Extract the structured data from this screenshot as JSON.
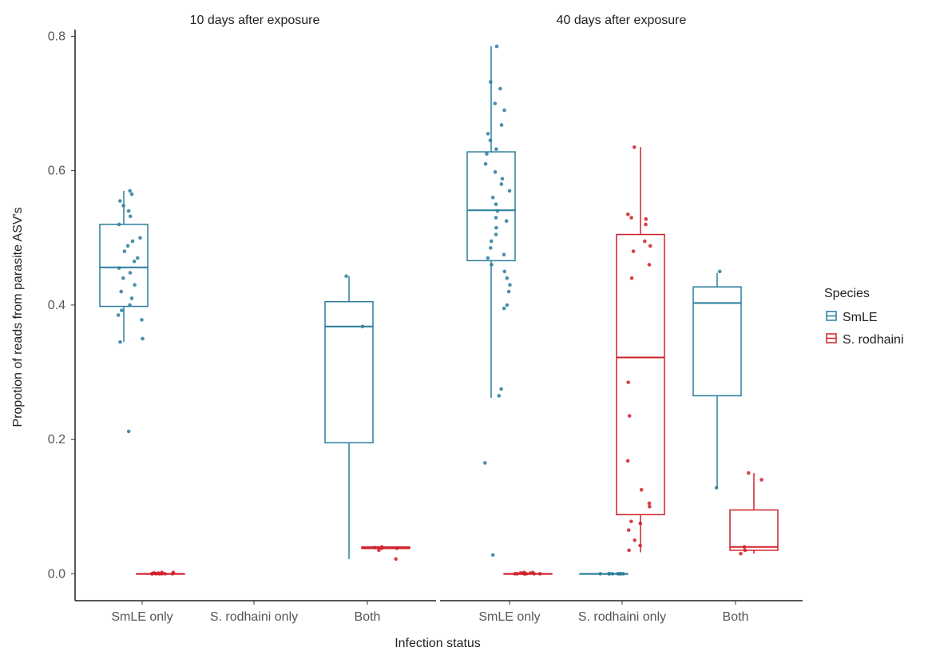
{
  "chart_data": {
    "type": "box",
    "y_label": "Propotion of reads from parasite ASV's",
    "x_label": "Infection status",
    "ylim": [
      -0.04,
      0.81
    ],
    "y_ticks": [
      0.0,
      0.2,
      0.4,
      0.6,
      0.8
    ],
    "y_tick_labels": [
      "0.0",
      "0.2",
      "0.4",
      "0.6",
      "0.8"
    ],
    "categories": [
      "SmLE only",
      "S. rodhaini only",
      "Both"
    ],
    "grid": false,
    "legend": {
      "title": "Species",
      "position": "right",
      "entries": [
        {
          "name": "SmLE",
          "color": "#2a7d9c"
        },
        {
          "name": "S. rodhaini",
          "color": "#d0202a"
        }
      ]
    },
    "panels": [
      {
        "title": "10 days after exposure",
        "boxes": [
          {
            "category": "SmLE only",
            "series": "SmLE",
            "min": 0.345,
            "q1": 0.398,
            "median": 0.456,
            "q3": 0.52,
            "max": 0.57,
            "points": [
              0.57,
              0.565,
              0.555,
              0.548,
              0.54,
              0.532,
              0.52,
              0.5,
              0.495,
              0.488,
              0.48,
              0.47,
              0.465,
              0.455,
              0.448,
              0.44,
              0.43,
              0.42,
              0.41,
              0.4,
              0.392,
              0.385,
              0.378,
              0.35,
              0.345,
              0.212
            ]
          },
          {
            "category": "SmLE only",
            "series": "S. rodhaini",
            "min": 0.0,
            "q1": 0.0,
            "median": 0.0,
            "q3": 0.0,
            "max": 0.0,
            "points": [
              0.0,
              0.0,
              0.001,
              0.002,
              0.0,
              0.001,
              0.0,
              0.002,
              0.0,
              0.001,
              0.0,
              0.0
            ]
          },
          {
            "category": "Both",
            "series": "SmLE",
            "min": 0.022,
            "q1": 0.195,
            "median": 0.368,
            "q3": 0.405,
            "max": 0.443,
            "points": [
              0.443,
              0.368
            ]
          },
          {
            "category": "Both",
            "series": "S. rodhaini",
            "min": 0.038,
            "q1": 0.038,
            "median": 0.038,
            "q3": 0.04,
            "max": 0.04,
            "points": [
              0.04,
              0.038,
              0.039,
              0.038,
              0.035,
              0.022
            ]
          }
        ]
      },
      {
        "title": "40 days after exposure",
        "boxes": [
          {
            "category": "SmLE only",
            "series": "SmLE",
            "min": 0.262,
            "q1": 0.466,
            "median": 0.541,
            "q3": 0.628,
            "max": 0.785,
            "points": [
              0.785,
              0.732,
              0.722,
              0.7,
              0.69,
              0.668,
              0.655,
              0.645,
              0.632,
              0.625,
              0.61,
              0.598,
              0.588,
              0.58,
              0.57,
              0.56,
              0.55,
              0.54,
              0.53,
              0.525,
              0.515,
              0.505,
              0.495,
              0.485,
              0.475,
              0.47,
              0.46,
              0.45,
              0.44,
              0.43,
              0.42,
              0.4,
              0.395,
              0.275,
              0.265,
              0.165,
              0.028
            ]
          },
          {
            "category": "SmLE only",
            "series": "S. rodhaini",
            "min": 0.0,
            "q1": 0.0,
            "median": 0.0,
            "q3": 0.0,
            "max": 0.0,
            "points": [
              0.0,
              0.001,
              0.0,
              0.002,
              0.0,
              0.001,
              0.0,
              0.0,
              0.002,
              0.001,
              0.0,
              0.0
            ]
          },
          {
            "category": "S. rodhaini only",
            "series": "SmLE",
            "min": 0.0,
            "q1": 0.0,
            "median": 0.0,
            "q3": 0.0,
            "max": 0.0,
            "points": [
              0.0,
              0.0,
              0.0,
              0.0,
              0.0,
              0.0,
              0.0,
              0.0
            ]
          },
          {
            "category": "S. rodhaini only",
            "series": "S. rodhaini",
            "min": 0.032,
            "q1": 0.088,
            "median": 0.322,
            "q3": 0.505,
            "max": 0.635,
            "points": [
              0.635,
              0.535,
              0.53,
              0.528,
              0.52,
              0.495,
              0.488,
              0.48,
              0.46,
              0.44,
              0.285,
              0.235,
              0.168,
              0.125,
              0.105,
              0.1,
              0.078,
              0.075,
              0.065,
              0.05,
              0.042,
              0.035
            ]
          },
          {
            "category": "Both",
            "series": "SmLE",
            "min": 0.128,
            "q1": 0.265,
            "median": 0.403,
            "q3": 0.427,
            "max": 0.448,
            "points": [
              0.45,
              0.128
            ]
          },
          {
            "category": "Both",
            "series": "S. rodhaini",
            "min": 0.03,
            "q1": 0.035,
            "median": 0.04,
            "q3": 0.095,
            "max": 0.15,
            "points": [
              0.15,
              0.14,
              0.04,
              0.035,
              0.03
            ]
          }
        ]
      }
    ]
  }
}
